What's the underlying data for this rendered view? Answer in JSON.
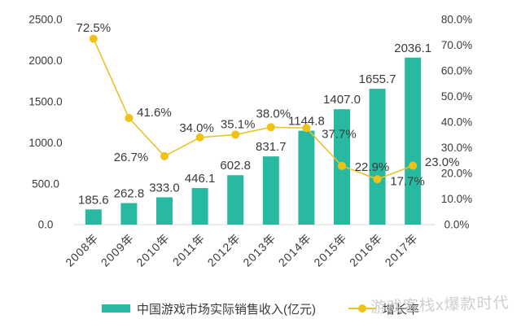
{
  "chart_data": {
    "type": "combo",
    "title": "",
    "categories": [
      "2008年",
      "2009年",
      "2010年",
      "2011年",
      "2012年",
      "2013年",
      "2014年",
      "2015年",
      "2016年",
      "2017年"
    ],
    "series": [
      {
        "name": "中国游戏市场实际销售收入(亿元)",
        "type": "bar",
        "axis": "left",
        "values": [
          185.6,
          262.8,
          333.0,
          446.1,
          602.8,
          831.7,
          1144.8,
          1407.0,
          1655.7,
          2036.1
        ],
        "data_labels": [
          "185.6",
          "262.8",
          "333.0",
          "446.1",
          "602.8",
          "831.7",
          "1144.8",
          "1407.0",
          "1655.7",
          "2036.1"
        ]
      },
      {
        "name": "增长率",
        "type": "line",
        "axis": "right",
        "values": [
          72.5,
          41.6,
          26.7,
          34.0,
          35.1,
          38.0,
          37.7,
          22.9,
          17.7,
          23.0
        ],
        "data_labels": [
          "72.5%",
          "41.6%",
          "26.7%",
          "34.0%",
          "35.1%",
          "38.0%",
          "37.7%",
          "22.9%",
          "17.7%",
          "23.0%"
        ],
        "label_offsets": [
          [
            0,
            -14
          ],
          [
            31,
            -7
          ],
          [
            -41,
            1
          ],
          [
            -4,
            -12
          ],
          [
            3,
            -13
          ],
          [
            3,
            -17
          ],
          [
            40,
            7
          ],
          [
            37,
            1
          ],
          [
            37,
            2
          ],
          [
            36,
            -5
          ]
        ]
      }
    ],
    "left_axis": {
      "min": 0,
      "max": 2500,
      "tick_values": [
        0,
        500,
        1000,
        1500,
        2000,
        2500
      ],
      "tick_labels": [
        "0.0",
        "500.0",
        "1000.0",
        "1500.0",
        "2000.0",
        "2500.0"
      ]
    },
    "right_axis": {
      "min": 0,
      "max": 80,
      "tick_values": [
        0,
        10,
        20,
        30,
        40,
        50,
        60,
        70,
        80
      ],
      "tick_labels": [
        "0.0%",
        "10.0%",
        "20.0%",
        "30.0%",
        "40.0%",
        "50.0%",
        "60.0%",
        "70.0%",
        "80.0%"
      ]
    },
    "legend_position": "bottom",
    "grid": false
  },
  "legend": {
    "bar_label": "中国游戏市场实际销售收入(亿元)",
    "line_label": "增长率"
  },
  "watermark": {
    "text": "游戏客栈x爆款时代"
  },
  "colors": {
    "bar": "#27BAA1",
    "line": "#E9C32C",
    "marker": "#F0C115",
    "text": "#3A3A3A",
    "axis_line": "#D9D9D9",
    "watermark": "#C3C3C3",
    "background": "#FFFFFF"
  }
}
